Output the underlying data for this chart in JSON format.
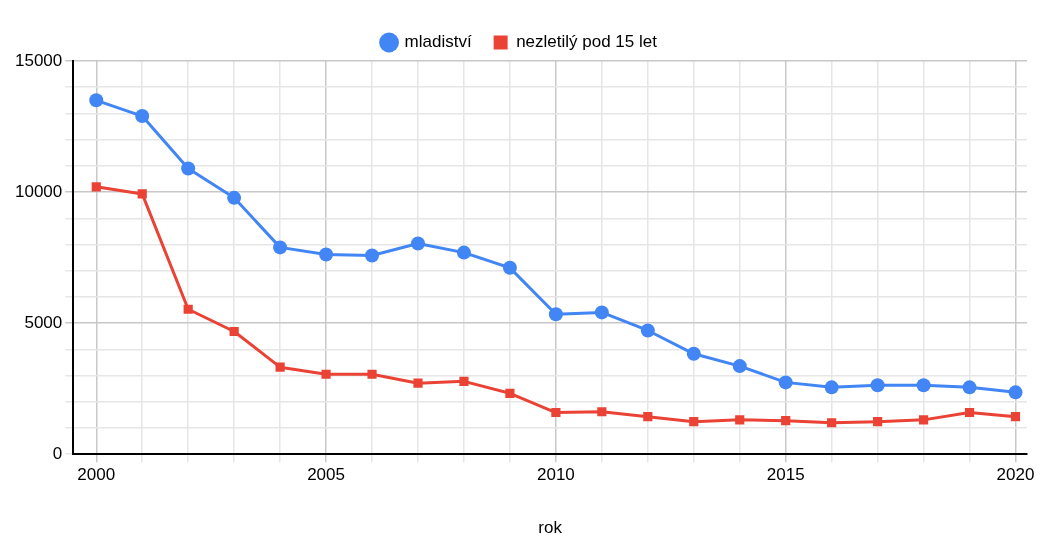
{
  "chart_data": {
    "type": "line",
    "xlabel": "rok",
    "legend": "top",
    "grid": true,
    "line_style": "solid",
    "x": [
      2000,
      2001,
      2002,
      2003,
      2004,
      2005,
      2006,
      2007,
      2008,
      2009,
      2010,
      2011,
      2012,
      2013,
      2014,
      2015,
      2016,
      2017,
      2018,
      2019,
      2020
    ],
    "xlim": [
      1999.5,
      2020.25
    ],
    "xticks": [
      2000,
      {
        "value": 2001,
        "label": null
      },
      {
        "value": 2002,
        "label": null
      },
      {
        "value": 2003,
        "label": null
      },
      {
        "value": 2004,
        "label": null
      },
      2005,
      {
        "value": 2006,
        "label": null
      },
      {
        "value": 2007,
        "label": null
      },
      {
        "value": 2008,
        "label": null
      },
      {
        "value": 2009,
        "label": null
      },
      2010,
      {
        "value": 2011,
        "label": null
      },
      {
        "value": 2012,
        "label": null
      },
      {
        "value": 2013,
        "label": null
      },
      {
        "value": 2014,
        "label": null
      },
      2015,
      {
        "value": 2016,
        "label": null
      },
      {
        "value": 2017,
        "label": null
      },
      {
        "value": 2018,
        "label": null
      },
      {
        "value": 2019,
        "label": null
      },
      2020
    ],
    "ylim": [
      0,
      15000
    ],
    "yticks": [
      0,
      {
        "value": 1000,
        "label": null
      },
      {
        "value": 2000,
        "label": null
      },
      {
        "value": 3000,
        "label": null
      },
      {
        "value": 4000,
        "label": null
      },
      5000,
      {
        "value": 6000,
        "label": null
      },
      {
        "value": 7000,
        "label": null
      },
      {
        "value": 8000,
        "label": null
      },
      {
        "value": 9000,
        "label": null
      },
      10000,
      {
        "value": 11000,
        "label": null
      },
      {
        "value": 12000,
        "label": null
      },
      {
        "value": 13000,
        "label": null
      },
      {
        "value": 14000,
        "label": null
      },
      15000
    ],
    "series": [
      {
        "name": "mladiství",
        "color": "#4285f4",
        "marker": "circle",
        "values": [
          13500,
          12900,
          10900,
          9780,
          7890,
          7620,
          7580,
          8040,
          7690,
          7110,
          5340,
          5410,
          4720,
          3830,
          3360,
          2740,
          2550,
          2630,
          2630,
          2550,
          2360
        ]
      },
      {
        "name": "nezletilý pod 15 let",
        "color": "#ea4335",
        "marker": "square",
        "values": [
          10200,
          9930,
          5530,
          4680,
          3320,
          3050,
          3050,
          2710,
          2780,
          2320,
          1590,
          1620,
          1430,
          1240,
          1310,
          1280,
          1200,
          1240,
          1310,
          1590,
          1430
        ]
      }
    ]
  }
}
